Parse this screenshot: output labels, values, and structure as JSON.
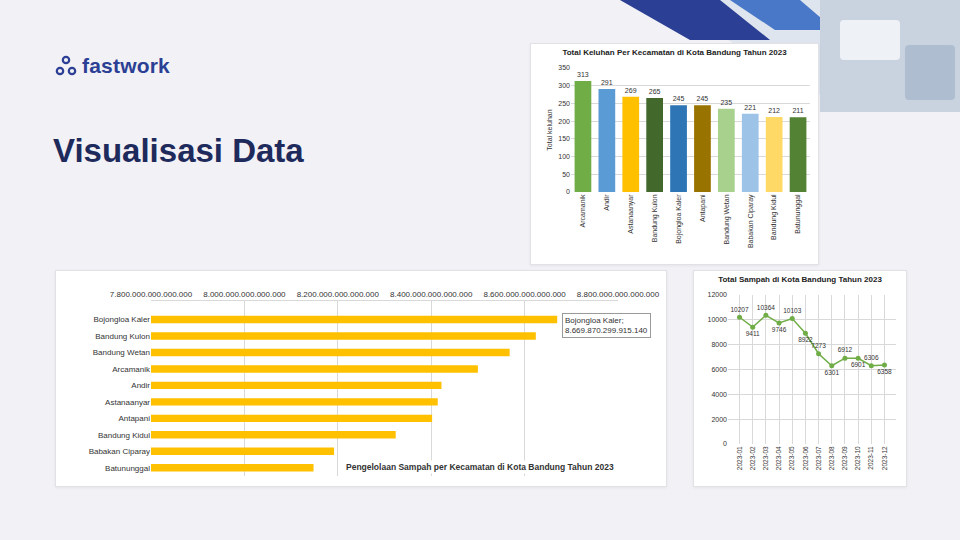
{
  "header": {
    "logo": "fastwork",
    "title": "Visualisasi Data"
  },
  "chart_data": [
    {
      "type": "bar",
      "title": "Total Keluhan Per Kecamatan di Kota Bandung Tahun 2023",
      "ylabel": "Total keluhan",
      "categories": [
        "Arcamanik",
        "Andir",
        "Astanaanyar",
        "Bandung Kulon",
        "Bojongloa Kaler",
        "Antapani",
        "Bandung Wetan",
        "Babakan Ciparay",
        "Bandung Kidul",
        "Batununggal"
      ],
      "values": [
        313,
        291,
        269,
        265,
        245,
        245,
        235,
        221,
        212,
        211
      ],
      "colors": [
        "#70ad47",
        "#5b9bd5",
        "#ffc000",
        "#43682b",
        "#2e75b6",
        "#997300",
        "#a9d18e",
        "#9dc3e6",
        "#ffd966",
        "#548235"
      ],
      "ylim": [
        0,
        350
      ],
      "yticks": [
        0,
        50,
        100,
        150,
        200,
        250,
        300,
        350
      ],
      "grid": true,
      "data_labels": true
    },
    {
      "type": "bar",
      "orientation": "horizontal",
      "title": "Pengelolaan Sampah per Kecamatan di Kota Bandung Tahun 2023",
      "categories": [
        "Bojongloa Kaler",
        "Bandung Kulon",
        "Bandung Wetan",
        "Arcamanik",
        "Andir",
        "Astanaanyar",
        "Antapani",
        "Bandung Kidul",
        "Babakan Ciparay",
        "Batununggal"
      ],
      "values": [
        8669870299915140,
        8624000000000000,
        8568000000000000,
        8500000000000000,
        8422000000000000,
        8414000000000000,
        8402000000000000,
        8324000000000000,
        8192000000000000,
        8148000000000000
      ],
      "color": "#ffc000",
      "xlim": [
        7800000000000000,
        8800000000000000
      ],
      "xticks": [
        {
          "value": 7800000000000000,
          "label": "7.800.000.000.000.000"
        },
        {
          "value": 8000000000000000,
          "label": "8.000.000.000.000.000"
        },
        {
          "value": 8200000000000000,
          "label": "8.200.000.000.000.000"
        },
        {
          "value": 8400000000000000,
          "label": "8.400.000.000.000.000"
        },
        {
          "value": 8600000000000000,
          "label": "8.600.000.000.000.000"
        },
        {
          "value": 8800000000000000,
          "label": "8.800.000.000.000.000"
        }
      ],
      "grid": true,
      "annotations": [
        {
          "category": "Bojongloa Kaler",
          "text": "Bojongloa Kaler; 8.669.870.299.915.140"
        }
      ]
    },
    {
      "type": "line",
      "title": "Total Sampah di Kota Bandung Tahun 2023",
      "categories": [
        "2023-01",
        "2023-02",
        "2023-03",
        "2023-04",
        "2023-05",
        "2023-06",
        "2023-07",
        "2023-08",
        "2023-09",
        "2023-10",
        "2023-11",
        "2023-12"
      ],
      "values": [
        10207,
        9411,
        10364,
        9746,
        10103,
        8922,
        7273,
        6301,
        6912,
        6901,
        6306,
        6358
      ],
      "color": "#70ad47",
      "marker": "circle",
      "ylim": [
        0,
        12000
      ],
      "yticks": [
        0,
        2000,
        4000,
        6000,
        8000,
        10000,
        12000
      ],
      "grid": true,
      "data_labels": true
    }
  ]
}
